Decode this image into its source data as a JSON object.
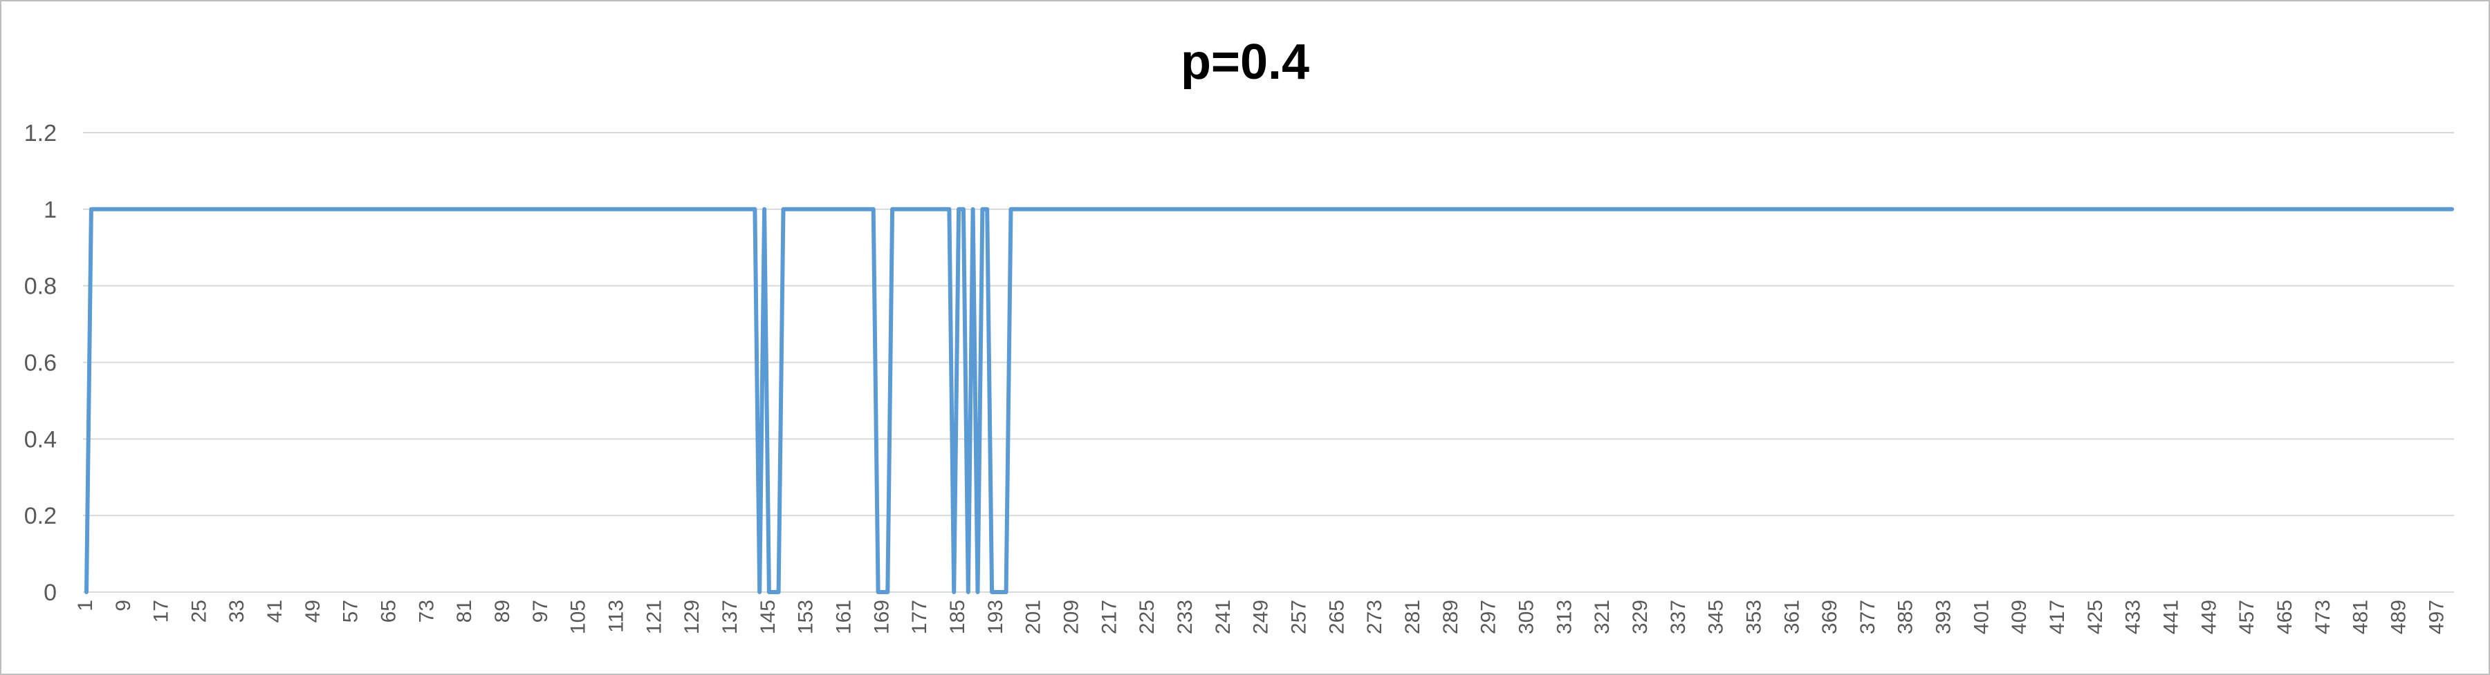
{
  "chart_data": {
    "type": "line",
    "title": "p=0.4",
    "xlabel": "",
    "ylabel": "",
    "ylim": [
      0,
      1.2
    ],
    "yticks": [
      "0",
      "0.2",
      "0.4",
      "0.6",
      "0.8",
      "1",
      "1.2"
    ],
    "xlim": [
      1,
      500
    ],
    "xticks": [
      1,
      9,
      17,
      25,
      33,
      41,
      49,
      57,
      65,
      73,
      81,
      89,
      97,
      105,
      113,
      121,
      129,
      137,
      145,
      153,
      161,
      169,
      177,
      185,
      193,
      201,
      209,
      217,
      225,
      233,
      241,
      249,
      257,
      265,
      273,
      281,
      289,
      297,
      305,
      313,
      321,
      329,
      337,
      345,
      353,
      361,
      369,
      377,
      385,
      393,
      401,
      409,
      417,
      425,
      433,
      441,
      449,
      457,
      465,
      473,
      481,
      489,
      497
    ],
    "grid": true,
    "legend": "none",
    "color": "#5B9BD5",
    "series": [
      {
        "x": [
          1,
          2,
          142,
          143,
          144,
          145,
          146,
          147,
          148,
          167,
          168,
          169,
          170,
          171,
          172,
          183,
          184,
          185,
          186,
          187,
          188,
          189,
          190,
          191,
          192,
          193,
          194,
          195,
          196,
          197,
          198,
          500
        ],
        "values": [
          0,
          1,
          1,
          0,
          1,
          0,
          0,
          0,
          1,
          1,
          0,
          0,
          0,
          1,
          1,
          1,
          0,
          1,
          1,
          0,
          1,
          0,
          1,
          1,
          0,
          0,
          0,
          0,
          1,
          1,
          1,
          1
        ]
      }
    ]
  }
}
